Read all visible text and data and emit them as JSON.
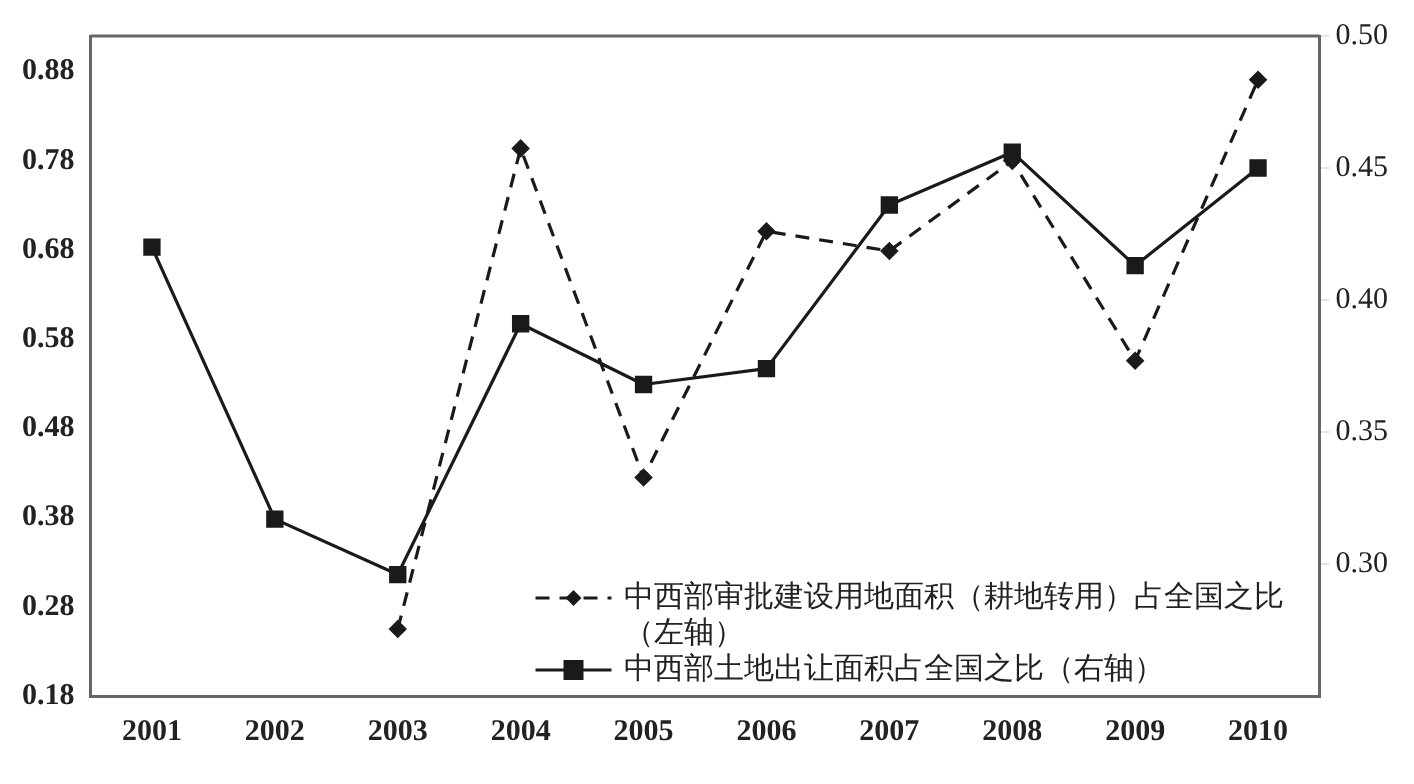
{
  "chart_data": {
    "type": "line",
    "categories": [
      "2001",
      "2002",
      "2003",
      "2004",
      "2005",
      "2006",
      "2007",
      "2008",
      "2009",
      "2010"
    ],
    "series": [
      {
        "name": "中西部审批建设用地面积（耕地转用）占全国之比（左轴）",
        "color": "#1a1a1a",
        "marker": "diamond",
        "line_style": "dashed",
        "values": [
          null,
          null,
          0.255,
          0.794,
          0.425,
          0.701,
          0.679,
          0.78,
          0.556,
          0.871
        ]
      },
      {
        "name": "中西部土地出让面积占全国之比（右轴）",
        "color": "#1a1a1a",
        "marker": "square",
        "line_style": "solid",
        "axis": "y2",
        "values": [
          0.42,
          0.317,
          0.296,
          0.391,
          0.368,
          0.374,
          0.436,
          0.456,
          0.413,
          0.45
        ]
      }
    ],
    "ylim": [
      0.18,
      0.92
    ],
    "yticks": [
      0.18,
      0.28,
      0.38,
      0.48,
      0.58,
      0.68,
      0.78,
      0.88
    ],
    "y2lim": [
      0.25,
      0.5
    ],
    "y2ticks": [
      {
        "value": 0.3,
        "label": "0.30"
      },
      0.35,
      {
        "value": 0.4,
        "label": "0.40"
      },
      0.45,
      {
        "value": 0.5,
        "label": "0.50"
      }
    ],
    "grid": false,
    "legend": "bottom right"
  }
}
